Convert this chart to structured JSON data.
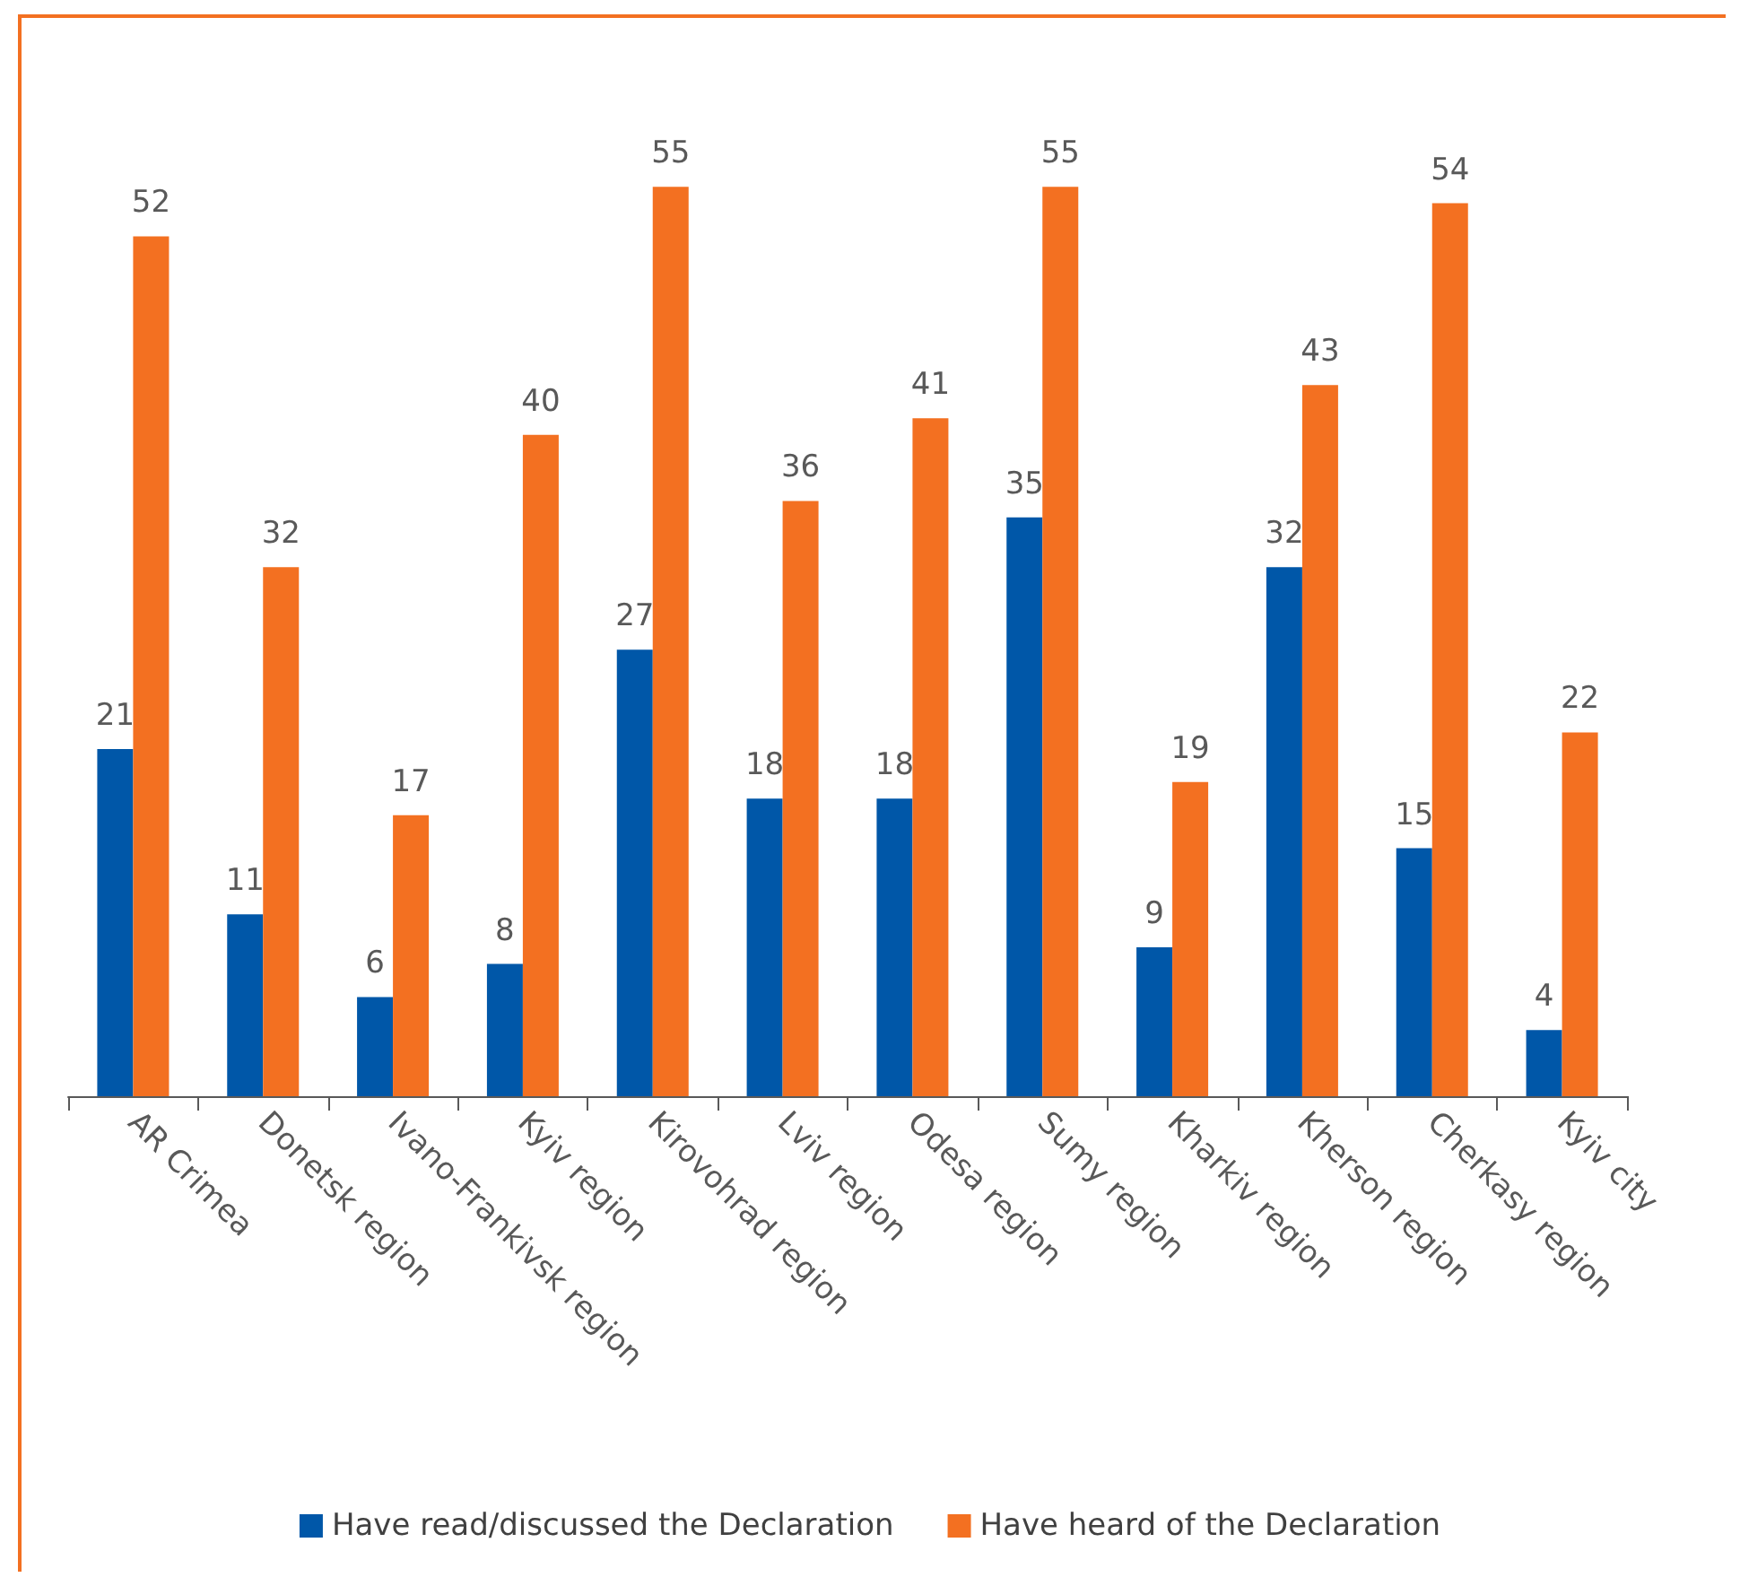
{
  "chart_data": {
    "type": "bar",
    "categories": [
      "AR Crimea",
      "Donetsk region",
      "Ivano-Frankivsk region",
      "Kyiv region",
      "Kirovohrad region",
      "Lviv region",
      "Odesa region",
      "Sumy region",
      "Kharkiv region",
      "Kherson region",
      "Cherkasy region",
      "Kyiv city"
    ],
    "series": [
      {
        "name": "Have read/discussed the Declaration",
        "color": "#0057a8",
        "values": [
          21,
          11,
          6,
          8,
          27,
          18,
          18,
          35,
          9,
          32,
          15,
          4
        ]
      },
      {
        "name": "Have heard of the Declaration",
        "color": "#f37021",
        "values": [
          52,
          32,
          17,
          40,
          55,
          36,
          41,
          55,
          19,
          43,
          54,
          22
        ]
      }
    ],
    "data_labels": true,
    "legend": "bottom"
  }
}
